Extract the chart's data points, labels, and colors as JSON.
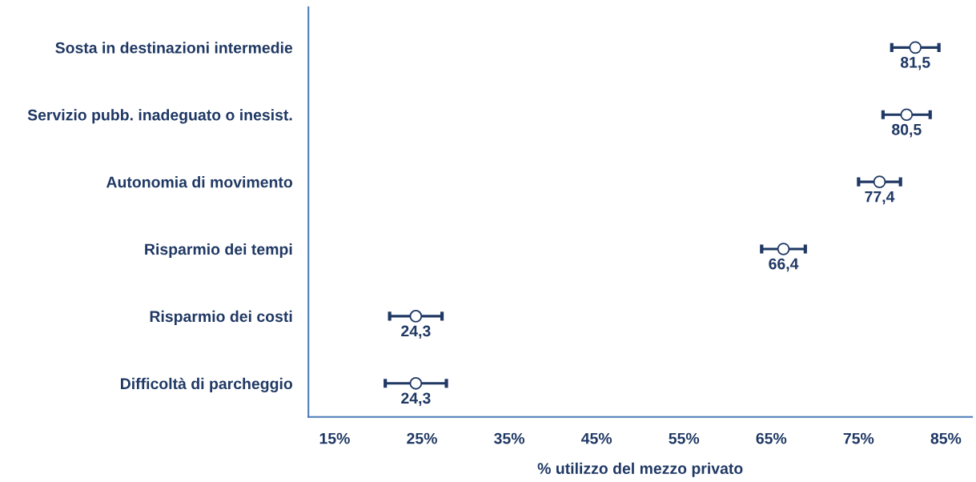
{
  "chart_data": {
    "type": "scatter",
    "orientation": "horizontal",
    "xlabel": "% utilizzo del mezzo privato",
    "categories": [
      "Sosta in destinazioni intermedie",
      "Servizio pubb. inadeguato o inesist.",
      "Autonomia di movimento",
      "Risparmio dei tempi",
      "Risparmio dei costi",
      "Difficoltà di parcheggio"
    ],
    "series": [
      {
        "color": "#1f3864",
        "values": [
          81.5,
          80.5,
          77.4,
          66.4,
          24.3,
          24.3
        ],
        "errors": [
          2.7,
          2.7,
          2.4,
          2.5,
          3.0,
          3.5
        ],
        "value_labels": [
          "81,5",
          "80,5",
          "77,4",
          "66,4",
          "24,3",
          "24,3"
        ]
      }
    ],
    "xlim": [
      12,
      88
    ],
    "xticks": [
      {
        "value": 15,
        "label": "15%"
      },
      {
        "value": 25,
        "label": "25%"
      },
      {
        "value": 35,
        "label": "35%"
      },
      {
        "value": 45,
        "label": "45%"
      },
      {
        "value": 55,
        "label": "55%"
      },
      {
        "value": 65,
        "label": "65%"
      },
      {
        "value": 75,
        "label": "75%"
      },
      {
        "value": 85,
        "label": "85%"
      }
    ],
    "marker": "circle",
    "grid": false
  }
}
